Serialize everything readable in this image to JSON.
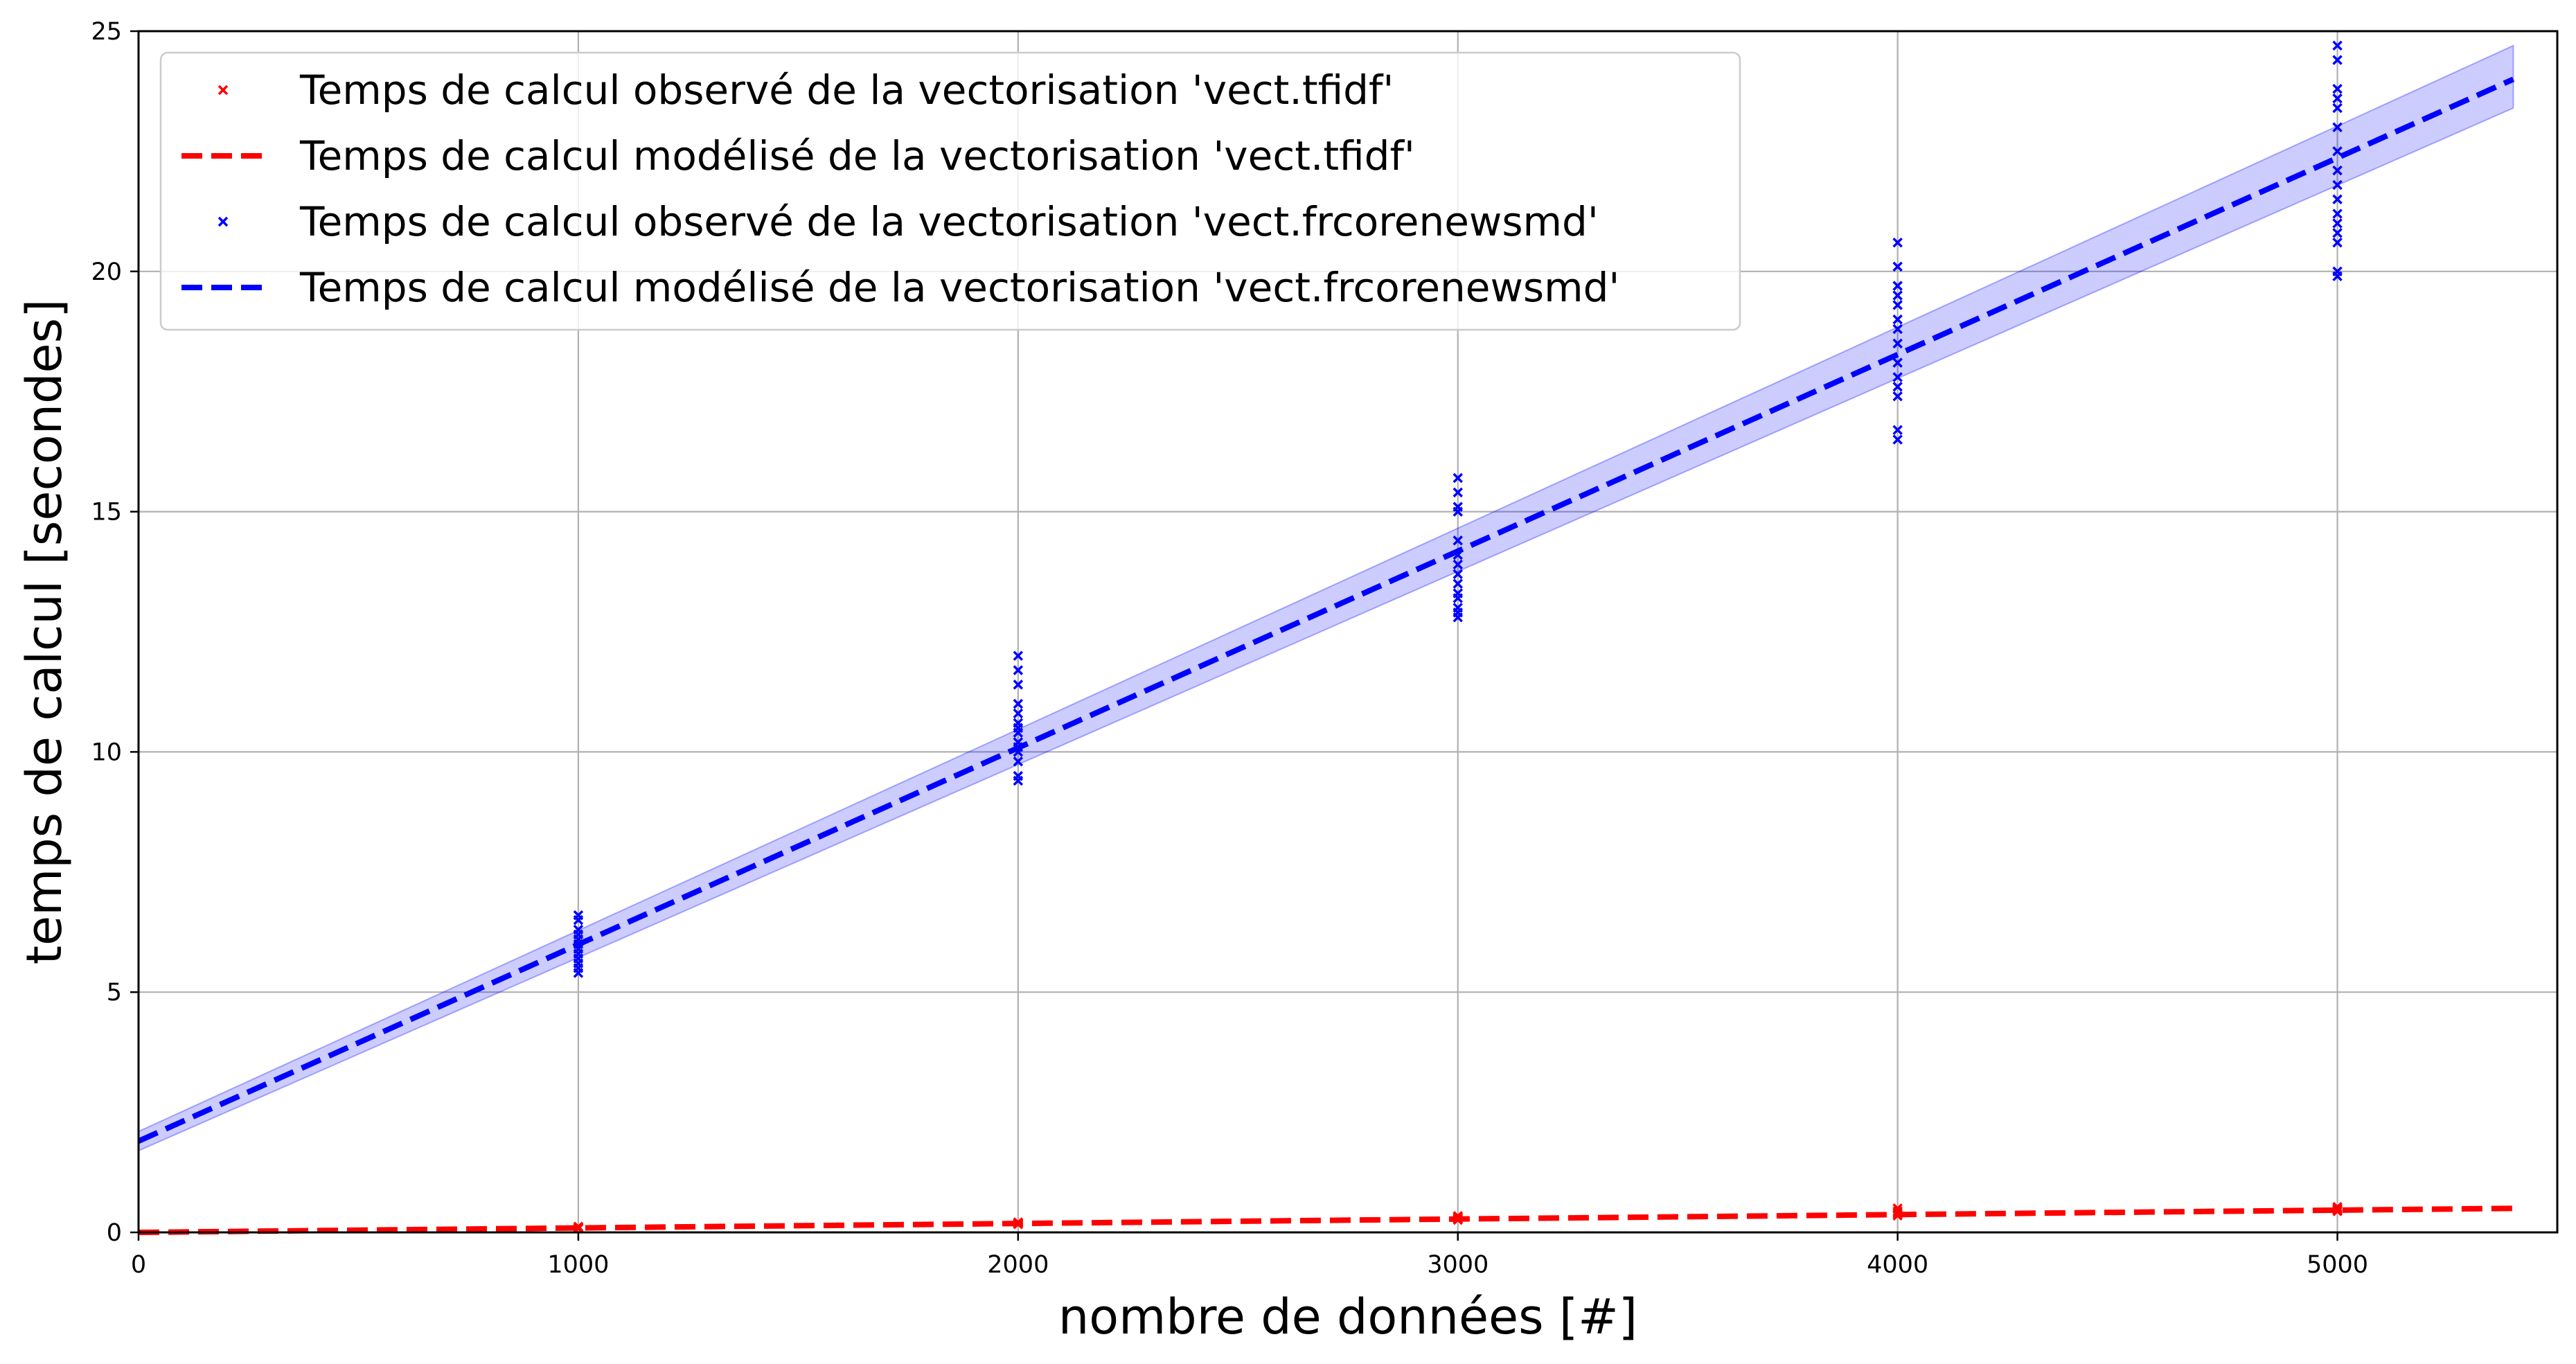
{
  "chart_data": {
    "type": "scatter",
    "xlabel": "nombre de données [#]",
    "ylabel": "temps de calcul [secondes]",
    "xlim": [
      0,
      5500
    ],
    "ylim": [
      0,
      25
    ],
    "xticks": [
      0,
      1000,
      2000,
      3000,
      4000,
      5000
    ],
    "yticks": [
      0,
      5,
      10,
      15,
      20,
      25
    ],
    "grid": true,
    "legend_position": "top-left",
    "series": [
      {
        "name": "Temps de calcul observé de la vectorisation 'vect.tfidf'",
        "kind": "scatter",
        "marker": "x",
        "color": "#ff0000",
        "x": [
          1000,
          1000,
          1000,
          1000,
          1000,
          2000,
          2000,
          2000,
          2000,
          2000,
          3000,
          3000,
          3000,
          3000,
          3000,
          4000,
          4000,
          4000,
          4000,
          4000,
          5000,
          5000,
          5000,
          5000,
          5000
        ],
        "y": [
          0.08,
          0.09,
          0.1,
          0.11,
          0.12,
          0.17,
          0.18,
          0.19,
          0.2,
          0.21,
          0.26,
          0.28,
          0.3,
          0.32,
          0.34,
          0.35,
          0.38,
          0.41,
          0.44,
          0.5,
          0.44,
          0.46,
          0.48,
          0.5,
          0.53
        ]
      },
      {
        "name": "Temps de calcul modélisé de la vectorisation 'vect.tfidf'",
        "kind": "line",
        "dash": true,
        "color": "#ff0000",
        "x": [
          0,
          5400
        ],
        "y": [
          0.0,
          0.5
        ]
      },
      {
        "name": "Temps de calcul observé de la vectorisation 'vect.frcorenewsmd'",
        "kind": "scatter",
        "marker": "x",
        "color": "#0000ff",
        "x": [
          1000,
          1000,
          1000,
          1000,
          1000,
          1000,
          1000,
          1000,
          1000,
          1000,
          1000,
          1000,
          2000,
          2000,
          2000,
          2000,
          2000,
          2000,
          2000,
          2000,
          2000,
          2000,
          2000,
          2000,
          2000,
          2000,
          3000,
          3000,
          3000,
          3000,
          3000,
          3000,
          3000,
          3000,
          3000,
          3000,
          3000,
          3000,
          3000,
          3000,
          4000,
          4000,
          4000,
          4000,
          4000,
          4000,
          4000,
          4000,
          4000,
          4000,
          4000,
          4000,
          4000,
          4000,
          5000,
          5000,
          5000,
          5000,
          5000,
          5000,
          5000,
          5000,
          5000,
          5000,
          5000,
          5000,
          5000,
          5000,
          5000,
          5000
        ],
        "y": [
          5.4,
          5.5,
          5.6,
          5.7,
          5.8,
          5.9,
          6.0,
          6.1,
          6.2,
          6.3,
          6.5,
          6.6,
          9.4,
          9.5,
          9.8,
          10.0,
          10.1,
          10.2,
          10.4,
          10.5,
          10.6,
          10.8,
          11.0,
          11.4,
          11.7,
          12.0,
          12.8,
          12.9,
          13.0,
          13.2,
          13.3,
          13.5,
          13.7,
          13.9,
          14.1,
          14.4,
          15.0,
          15.1,
          15.4,
          15.7,
          16.5,
          16.7,
          17.4,
          17.6,
          17.8,
          18.1,
          18.5,
          18.8,
          19.0,
          19.3,
          19.5,
          19.7,
          20.1,
          20.6,
          19.9,
          20.0,
          20.6,
          20.8,
          21.0,
          21.2,
          21.5,
          21.8,
          22.1,
          22.5,
          23.0,
          23.4,
          23.6,
          23.8,
          24.4,
          24.7
        ]
      },
      {
        "name": "Temps de calcul modélisé de la vectorisation 'vect.frcorenewsmd'",
        "kind": "line",
        "dash": true,
        "color": "#0000ff",
        "x": [
          0,
          5400
        ],
        "y": [
          1.9,
          24.0
        ],
        "band": {
          "lower": [
            1.7,
            23.4
          ],
          "upper": [
            2.1,
            24.7
          ],
          "fill": "#0000ff",
          "opacity": 0.2
        }
      }
    ]
  }
}
